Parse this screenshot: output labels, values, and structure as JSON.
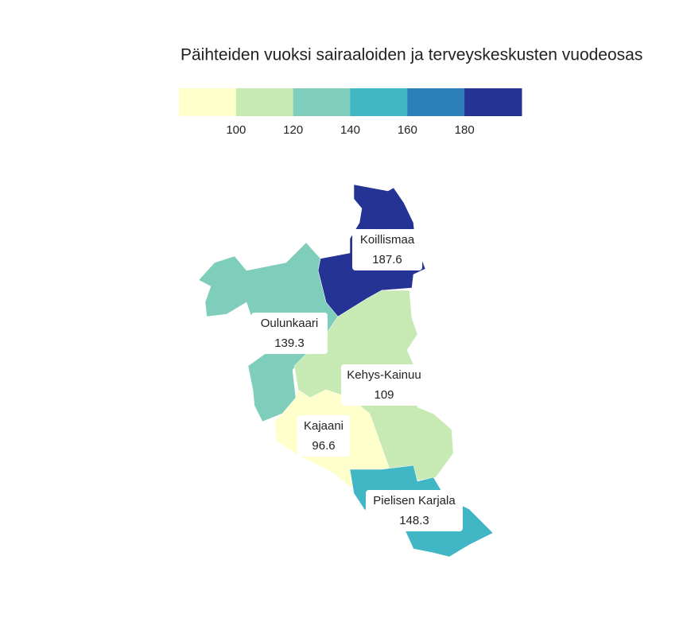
{
  "chart_data": {
    "type": "choropleth",
    "title": "Päihteiden vuoksi sairaaloiden ja terveyskeskusten vuodeosas",
    "regions": [
      {
        "name": "Koillismaa",
        "value": 187.6
      },
      {
        "name": "Oulunkaari",
        "value": 139.3
      },
      {
        "name": "Kehys-Kainuu",
        "value": 109
      },
      {
        "name": "Kajaani",
        "value": 96.6
      },
      {
        "name": "Pielisen Karjala",
        "value": 148.3
      }
    ],
    "colors": [
      "#ffffcc",
      "#c7e9b4",
      "#7fcdbb",
      "#41b6c4",
      "#2c7fb8",
      "#253494"
    ],
    "lim": [
      80,
      200
    ],
    "ticks": [
      100,
      120,
      140,
      160,
      180
    ]
  }
}
